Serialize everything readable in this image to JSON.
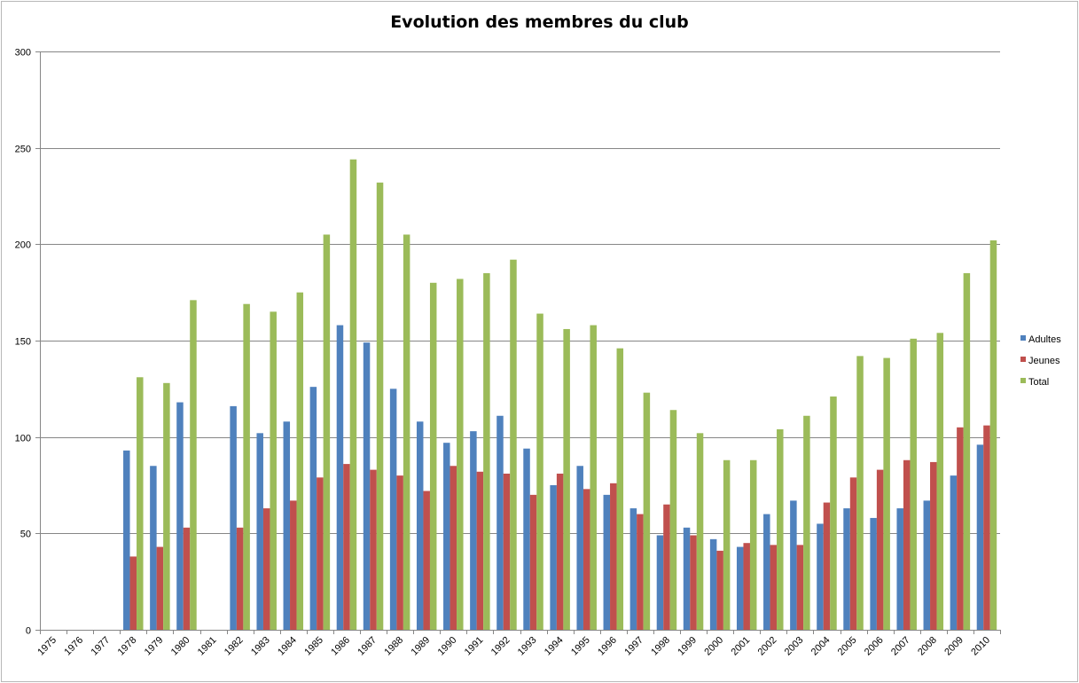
{
  "chart_data": {
    "type": "bar",
    "title": "Evolution des membres du club",
    "xlabel": "",
    "ylabel": "",
    "ylim": [
      0,
      300
    ],
    "yticks": [
      "0",
      "50",
      "100",
      "150",
      "200",
      "250",
      "300"
    ],
    "grid": true,
    "legend_position": "right",
    "categories": [
      "1975",
      "1976",
      "1977",
      "1978",
      "1979",
      "1980",
      "1981",
      "1982",
      "1983",
      "1984",
      "1985",
      "1986",
      "1987",
      "1988",
      "1989",
      "1990",
      "1991",
      "1992",
      "1993",
      "1994",
      "1995",
      "1996",
      "1997",
      "1998",
      "1999",
      "2000",
      "2001",
      "2002",
      "2003",
      "2004",
      "2005",
      "2006",
      "2007",
      "2008",
      "2009",
      "2010"
    ],
    "series": [
      {
        "name": "Adultes",
        "color": "#4f81bd",
        "values": [
          null,
          null,
          null,
          93,
          85,
          118,
          null,
          116,
          102,
          108,
          126,
          158,
          149,
          125,
          108,
          97,
          103,
          111,
          94,
          75,
          85,
          70,
          63,
          49,
          53,
          47,
          43,
          60,
          67,
          55,
          63,
          58,
          63,
          67,
          80,
          96
        ]
      },
      {
        "name": "Jeunes",
        "color": "#c0504d",
        "values": [
          null,
          null,
          null,
          38,
          43,
          53,
          null,
          53,
          63,
          67,
          79,
          86,
          83,
          80,
          72,
          85,
          82,
          81,
          70,
          81,
          73,
          76,
          60,
          65,
          49,
          41,
          45,
          44,
          44,
          66,
          79,
          83,
          88,
          87,
          105,
          106
        ]
      },
      {
        "name": "Total",
        "color": "#9bbb59",
        "values": [
          null,
          null,
          null,
          131,
          128,
          171,
          null,
          169,
          165,
          175,
          205,
          244,
          232,
          205,
          180,
          182,
          185,
          192,
          164,
          156,
          158,
          146,
          123,
          114,
          102,
          88,
          88,
          104,
          111,
          121,
          142,
          141,
          151,
          154,
          185,
          202
        ]
      }
    ]
  }
}
